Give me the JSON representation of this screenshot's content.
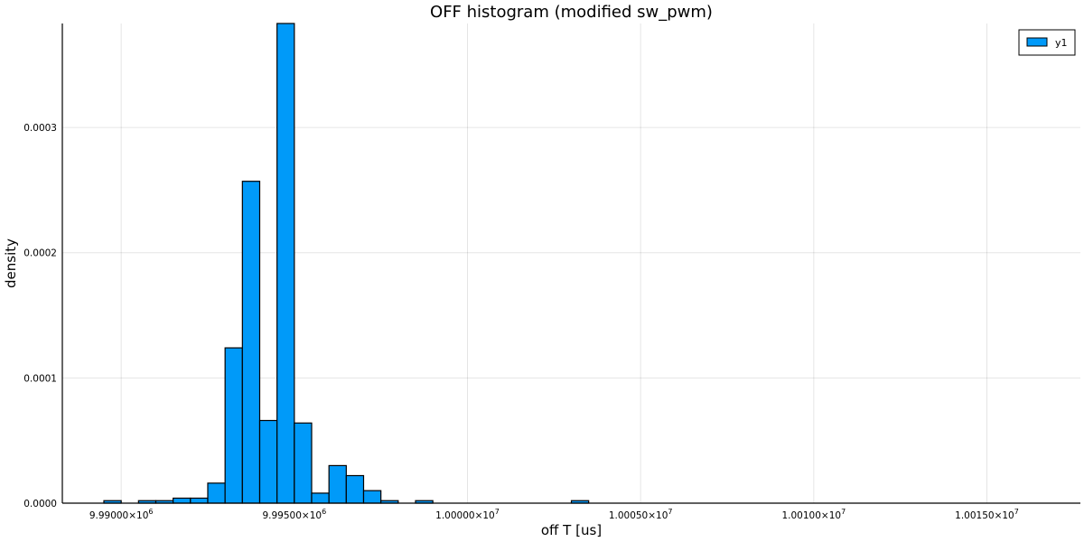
{
  "chart_data": {
    "type": "bar",
    "title": "OFF histogram (modified sw_pwm)",
    "xlabel": "off T [us]",
    "ylabel": "density",
    "bar_color": "#009af9",
    "grid": true,
    "legend_placement": "top-right",
    "xlim": [
      9988300,
      10017700
    ],
    "ylim": [
      0,
      0.000383
    ],
    "x_ticks": [
      {
        "value": 9990000,
        "mantissa": "9.99000",
        "exponent": "6"
      },
      {
        "value": 9995000,
        "mantissa": "9.99500",
        "exponent": "6"
      },
      {
        "value": 10000000,
        "mantissa": "1.00000",
        "exponent": "7"
      },
      {
        "value": 10005000,
        "mantissa": "1.00050",
        "exponent": "7"
      },
      {
        "value": 10010000,
        "mantissa": "1.00100",
        "exponent": "7"
      },
      {
        "value": 10015000,
        "mantissa": "1.00150",
        "exponent": "7"
      }
    ],
    "y_ticks": [
      {
        "value": 0,
        "label": "0.0000"
      },
      {
        "value": 0.0001,
        "label": "0.0001"
      },
      {
        "value": 0.0002,
        "label": "0.0002"
      },
      {
        "value": 0.0003,
        "label": "0.0003"
      }
    ],
    "bin_width": 500,
    "series": [
      {
        "name": "y1",
        "bins": [
          {
            "x0": 9989500,
            "x1": 9990000,
            "density": 2e-06
          },
          {
            "x0": 9990000,
            "x1": 9990500,
            "density": 0
          },
          {
            "x0": 9990500,
            "x1": 9991000,
            "density": 2e-06
          },
          {
            "x0": 9991000,
            "x1": 9991500,
            "density": 2e-06
          },
          {
            "x0": 9991500,
            "x1": 9992000,
            "density": 4e-06
          },
          {
            "x0": 9992000,
            "x1": 9992500,
            "density": 4e-06
          },
          {
            "x0": 9992500,
            "x1": 9993000,
            "density": 1.6e-05
          },
          {
            "x0": 9993000,
            "x1": 9993500,
            "density": 0.000124
          },
          {
            "x0": 9993500,
            "x1": 9994000,
            "density": 0.000257
          },
          {
            "x0": 9994000,
            "x1": 9994500,
            "density": 6.6e-05
          },
          {
            "x0": 9994500,
            "x1": 9995000,
            "density": 0.000383
          },
          {
            "x0": 9995000,
            "x1": 9995500,
            "density": 6.4e-05
          },
          {
            "x0": 9995500,
            "x1": 9996000,
            "density": 8e-06
          },
          {
            "x0": 9996000,
            "x1": 9996500,
            "density": 3e-05
          },
          {
            "x0": 9996500,
            "x1": 9997000,
            "density": 2.2e-05
          },
          {
            "x0": 9997000,
            "x1": 9997500,
            "density": 1e-05
          },
          {
            "x0": 9997500,
            "x1": 9998000,
            "density": 2e-06
          },
          {
            "x0": 9998000,
            "x1": 9998500,
            "density": 0
          },
          {
            "x0": 9998500,
            "x1": 9999000,
            "density": 2e-06
          },
          {
            "x0": 9999000,
            "x1": 9999500,
            "density": 0
          },
          {
            "x0": 9999500,
            "x1": 10000000,
            "density": 0
          },
          {
            "x0": 10000000,
            "x1": 10000500,
            "density": 0
          },
          {
            "x0": 10000500,
            "x1": 10001000,
            "density": 0
          },
          {
            "x0": 10001000,
            "x1": 10001500,
            "density": 0
          },
          {
            "x0": 10001500,
            "x1": 10002000,
            "density": 0
          },
          {
            "x0": 10002000,
            "x1": 10002500,
            "density": 0
          },
          {
            "x0": 10002500,
            "x1": 10003000,
            "density": 0
          },
          {
            "x0": 10003000,
            "x1": 10003500,
            "density": 2e-06
          }
        ]
      }
    ]
  }
}
